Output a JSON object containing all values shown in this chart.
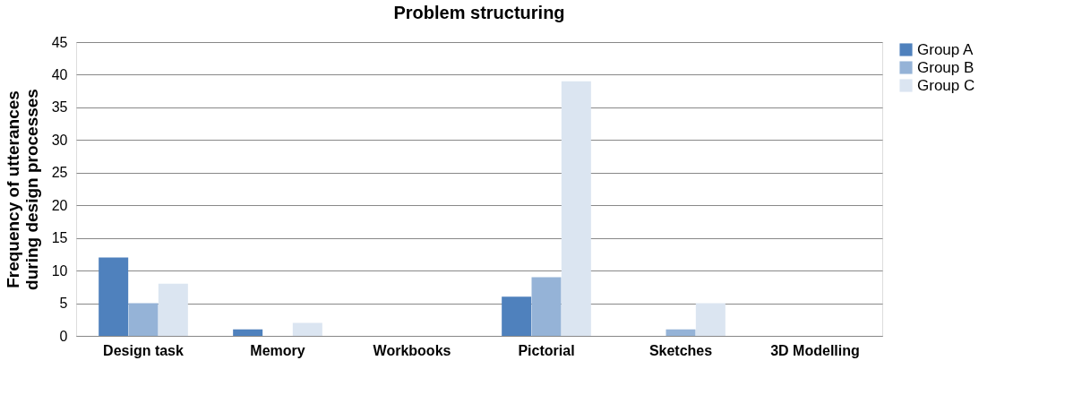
{
  "chart_data": {
    "type": "bar",
    "title": "Problem structuring",
    "ylabel": "Frequency of utterances during design processes",
    "categories": [
      "Design task",
      "Memory",
      "Workbooks",
      "Pictorial",
      "Sketches",
      "3D Modelling"
    ],
    "series": [
      {
        "name": "Group A",
        "color": "#4f81bd",
        "values": [
          12,
          1,
          0,
          6,
          0,
          0
        ]
      },
      {
        "name": "Group B",
        "color": "#95b3d7",
        "values": [
          5,
          0,
          0,
          9,
          1,
          0
        ]
      },
      {
        "name": "Group C",
        "color": "#dbe5f1",
        "values": [
          8,
          2,
          0,
          39,
          5,
          0
        ]
      }
    ],
    "ylim": [
      0,
      45
    ],
    "yticks": [
      0,
      5,
      10,
      15,
      20,
      25,
      30,
      35,
      40,
      45
    ],
    "grid": "y",
    "legend": "right"
  }
}
